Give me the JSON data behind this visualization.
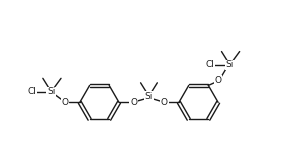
{
  "bg": "#ffffff",
  "lc": "#1a1a1a",
  "lw": 1.0,
  "fs": 6.5,
  "figsize": [
    3.08,
    1.6
  ],
  "dpi": 100,
  "xlim": [
    -0.5,
    10.5
  ],
  "ylim": [
    0.0,
    5.5
  ]
}
